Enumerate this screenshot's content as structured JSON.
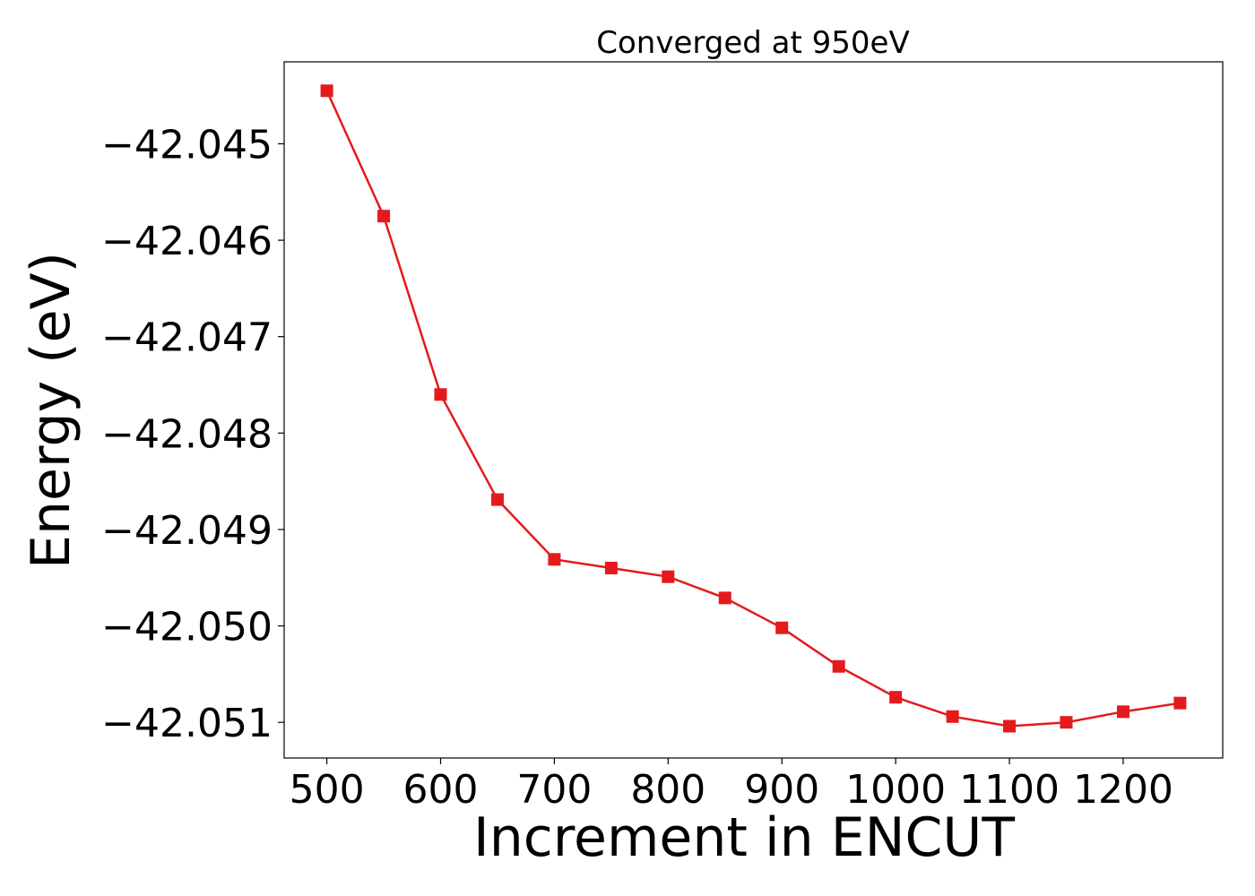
{
  "chart_data": {
    "type": "line",
    "title": "Converged at 950eV",
    "xlabel": "Increment in ENCUT",
    "ylabel": "Energy (eV)",
    "xlim": [
      462.5,
      1287.5
    ],
    "ylim": [
      -42.05137,
      -42.04415
    ],
    "xticks": [
      500,
      600,
      700,
      800,
      900,
      1000,
      1100,
      1200
    ],
    "xtick_labels": [
      "500",
      "600",
      "700",
      "800",
      "900",
      "1000",
      "1100",
      "1200"
    ],
    "yticks": [
      -42.045,
      -42.046,
      -42.047,
      -42.048,
      -42.049,
      -42.05,
      -42.051
    ],
    "ytick_labels": [
      "−42.045",
      "−42.046",
      "−42.047",
      "−42.048",
      "−42.049",
      "−42.050",
      "−42.051"
    ],
    "grid": false,
    "series": [
      {
        "color": "#e41a1c",
        "marker": "square",
        "x": [
          500,
          550,
          600,
          650,
          700,
          750,
          800,
          850,
          900,
          950,
          1000,
          1050,
          1100,
          1150,
          1200,
          1250
        ],
        "y": [
          -42.04445,
          -42.04575,
          -42.0476,
          -42.04869,
          -42.04931,
          -42.0494,
          -42.04949,
          -42.04971,
          -42.05002,
          -42.05042,
          -42.05074,
          -42.05094,
          -42.05104,
          -42.051,
          -42.05089,
          -42.0508
        ]
      }
    ]
  }
}
